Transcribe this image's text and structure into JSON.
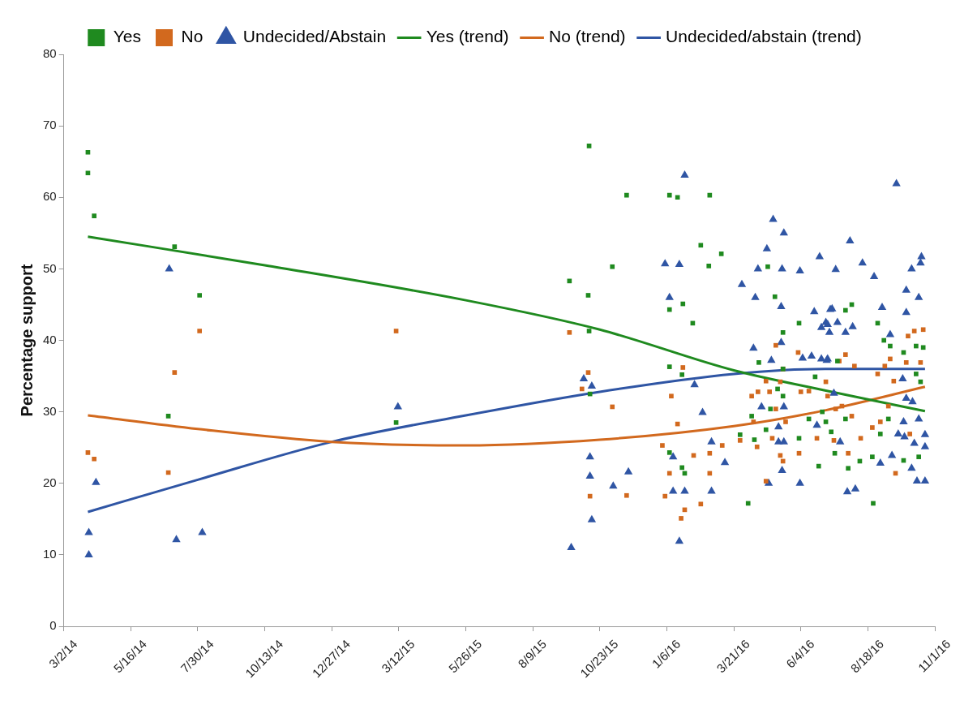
{
  "chart_data": {
    "type": "scatter",
    "ylabel": "Percentage support",
    "legend": "top",
    "grid": false,
    "xlim": [
      "2014-03-02",
      "2016-11-01"
    ],
    "xticks": [
      {
        "value": "2014-03-02",
        "label": "3/2/14"
      },
      {
        "value": "2014-05-16",
        "label": "5/16/14"
      },
      {
        "value": "2014-07-30",
        "label": "7/30/14"
      },
      {
        "value": "2014-10-13",
        "label": "10/13/14"
      },
      {
        "value": "2014-12-27",
        "label": "12/27/14"
      },
      {
        "value": "2015-03-12",
        "label": "3/12/15"
      },
      {
        "value": "2015-05-26",
        "label": "5/26/15"
      },
      {
        "value": "2015-08-09",
        "label": "8/9/15"
      },
      {
        "value": "2015-10-23",
        "label": "10/23/15"
      },
      {
        "value": "2016-01-06",
        "label": "1/6/16"
      },
      {
        "value": "2016-03-21",
        "label": "3/21/16"
      },
      {
        "value": "2016-06-04",
        "label": "6/4/16"
      },
      {
        "value": "2016-08-18",
        "label": "8/18/16"
      },
      {
        "value": "2016-11-01",
        "label": "11/1/16"
      }
    ],
    "ylim": [
      0,
      80
    ],
    "yticks": [
      0,
      10,
      20,
      30,
      40,
      50,
      60,
      70,
      80
    ],
    "series": [
      {
        "name": "Yes",
        "type": "scatter",
        "marker": "square",
        "color": "#1f8a1f",
        "x": [
          "2014-03-29",
          "2014-03-29",
          "2014-04-05",
          "2014-07-04",
          "2014-06-27",
          "2014-08-01",
          "2015-03-09",
          "2015-09-19",
          "2015-10-10",
          "2015-10-11",
          "2015-10-11",
          "2015-10-12",
          "2015-11-06",
          "2015-11-22",
          "2016-01-09",
          "2016-01-18",
          "2016-01-09",
          "2016-01-09",
          "2016-01-09",
          "2016-01-24",
          "2016-01-23",
          "2016-02-04",
          "2016-02-13",
          "2016-02-23",
          "2016-02-22",
          "2016-03-07",
          "2016-01-23",
          "2016-01-26",
          "2016-04-28",
          "2016-05-06",
          "2016-06-02",
          "2016-05-15",
          "2016-04-18",
          "2016-05-15",
          "2016-06-20",
          "2016-05-09",
          "2016-05-15",
          "2016-04-10",
          "2016-05-01",
          "2016-06-13",
          "2016-04-26",
          "2016-03-28",
          "2016-04-13",
          "2016-06-02",
          "2016-06-24",
          "2016-07-02",
          "2016-04-06",
          "2016-07-31",
          "2016-07-24",
          "2016-08-29",
          "2016-09-05",
          "2016-09-12",
          "2016-09-27",
          "2016-10-11",
          "2016-10-19",
          "2016-07-15",
          "2016-10-11",
          "2016-10-16",
          "2016-07-08",
          "2016-07-24",
          "2016-09-10",
          "2016-09-01",
          "2016-07-12",
          "2016-07-27",
          "2016-08-09",
          "2016-08-23",
          "2016-09-27",
          "2016-10-14",
          "2016-08-24",
          "2016-06-28"
        ],
        "values": [
          66.3,
          63.4,
          57.4,
          53.1,
          29.4,
          46.3,
          28.5,
          48.3,
          46.3,
          67.2,
          41.3,
          32.5,
          50.3,
          60.3,
          60.3,
          60.0,
          44.3,
          36.3,
          24.3,
          45.1,
          35.2,
          42.4,
          53.3,
          60.3,
          50.4,
          52.1,
          22.2,
          21.4,
          50.3,
          46.1,
          42.4,
          41.1,
          36.9,
          36.0,
          34.9,
          33.2,
          32.2,
          29.4,
          30.4,
          29.0,
          27.5,
          26.8,
          26.1,
          26.3,
          22.4,
          28.6,
          17.2,
          45.0,
          44.2,
          42.4,
          40.0,
          39.2,
          38.3,
          39.2,
          39.0,
          37.1,
          35.3,
          34.2,
          27.2,
          29.0,
          29.0,
          26.9,
          24.2,
          22.1,
          23.1,
          23.7,
          23.2,
          23.7,
          17.2,
          30.0
        ]
      },
      {
        "name": "No",
        "type": "scatter",
        "marker": "square",
        "color": "#d2691e",
        "x": [
          "2014-03-29",
          "2014-04-05",
          "2014-06-27",
          "2014-07-04",
          "2014-08-01",
          "2015-03-09",
          "2015-09-19",
          "2015-10-10",
          "2015-10-03",
          "2015-11-06",
          "2015-10-12",
          "2015-11-22",
          "2016-01-24",
          "2016-01-11",
          "2016-01-18",
          "2016-01-01",
          "2016-01-09",
          "2016-02-05",
          "2016-02-23",
          "2016-02-23",
          "2016-03-08",
          "2016-01-04",
          "2016-01-26",
          "2016-01-22",
          "2016-02-13",
          "2016-05-07",
          "2016-06-01",
          "2016-05-15",
          "2016-04-26",
          "2016-05-12",
          "2016-04-17",
          "2016-04-10",
          "2016-04-30",
          "2016-06-04",
          "2016-06-13",
          "2016-07-02",
          "2016-05-07",
          "2016-05-18",
          "2016-04-12",
          "2016-03-28",
          "2016-04-16",
          "2016-05-03",
          "2016-05-12",
          "2016-05-15",
          "2016-06-02",
          "2016-06-22",
          "2016-04-26",
          "2016-07-24",
          "2016-07-17",
          "2016-08-03",
          "2016-08-29",
          "2016-09-06",
          "2016-09-16",
          "2016-09-12",
          "2016-10-02",
          "2016-10-09",
          "2016-10-19",
          "2016-09-30",
          "2016-10-16",
          "2016-07-04",
          "2016-07-13",
          "2016-07-20",
          "2016-07-31",
          "2016-09-10",
          "2016-08-23",
          "2016-09-01",
          "2016-08-10",
          "2016-07-27",
          "2016-09-18",
          "2016-10-04",
          "2016-07-11"
        ],
        "values": [
          24.3,
          23.4,
          21.5,
          35.5,
          41.3,
          41.3,
          41.1,
          35.5,
          33.2,
          30.7,
          18.2,
          18.3,
          36.2,
          32.2,
          28.3,
          25.3,
          21.4,
          23.9,
          24.2,
          21.4,
          25.3,
          18.2,
          16.3,
          15.1,
          17.1,
          39.3,
          38.3,
          36.0,
          34.3,
          34.2,
          32.8,
          32.2,
          32.8,
          32.8,
          32.9,
          34.2,
          30.4,
          28.6,
          28.6,
          26.0,
          25.1,
          26.3,
          23.9,
          23.1,
          24.2,
          26.3,
          20.3,
          38.0,
          37.1,
          36.4,
          35.3,
          36.4,
          34.3,
          37.4,
          40.6,
          41.3,
          41.5,
          36.9,
          36.9,
          32.2,
          30.4,
          30.8,
          29.4,
          30.8,
          27.8,
          28.6,
          26.3,
          24.2,
          21.4,
          26.9,
          26.0
        ]
      },
      {
        "name": "Undecided/Abstain",
        "type": "scatter",
        "marker": "triangle",
        "color": "#2f55a4",
        "x": [
          "2014-03-30",
          "2014-03-30",
          "2014-04-07",
          "2014-06-28",
          "2014-07-06",
          "2014-08-04",
          "2015-03-11",
          "2015-09-21",
          "2015-10-05",
          "2015-10-14",
          "2015-10-12",
          "2015-10-12",
          "2015-10-14",
          "2015-11-07",
          "2015-11-24",
          "2016-01-04",
          "2016-01-20",
          "2016-01-26",
          "2016-01-09",
          "2016-01-13",
          "2016-01-13",
          "2016-01-26",
          "2016-01-20",
          "2016-02-06",
          "2016-02-15",
          "2016-02-25",
          "2016-02-25",
          "2016-03-11",
          "2016-05-04",
          "2016-05-16",
          "2016-04-27",
          "2016-04-17",
          "2016-05-14",
          "2016-06-03",
          "2016-06-25",
          "2016-03-30",
          "2016-04-14",
          "2016-05-13",
          "2016-06-19",
          "2016-07-07",
          "2016-07-02",
          "2016-06-27",
          "2016-07-06",
          "2016-05-13",
          "2016-04-12",
          "2016-05-02",
          "2016-06-06",
          "2016-06-16",
          "2016-06-27",
          "2016-07-04",
          "2016-04-21",
          "2016-05-16",
          "2016-05-10",
          "2016-05-10",
          "2016-05-16",
          "2016-06-22",
          "2016-05-14",
          "2016-04-29",
          "2016-06-03",
          "2016-07-29",
          "2016-08-12",
          "2016-07-13",
          "2016-08-25",
          "2016-10-06",
          "2016-10-17",
          "2016-10-16",
          "2016-09-30",
          "2016-10-14",
          "2016-09-03",
          "2016-09-30",
          "2016-07-09",
          "2016-07-15",
          "2016-07-04",
          "2016-08-01",
          "2016-07-24",
          "2016-09-12",
          "2016-07-03",
          "2016-09-26",
          "2016-07-11",
          "2016-09-30",
          "2016-10-07",
          "2016-10-14",
          "2016-09-27",
          "2016-09-21",
          "2016-10-21",
          "2016-09-28",
          "2016-10-09",
          "2016-10-21",
          "2016-07-18",
          "2016-09-01",
          "2016-09-14",
          "2016-10-06",
          "2016-10-12",
          "2016-10-21",
          "2016-09-19",
          "2016-07-26",
          "2016-08-04"
        ],
        "values": [
          13.1,
          10.0,
          20.1,
          50.0,
          12.1,
          13.1,
          30.7,
          11.0,
          34.6,
          33.6,
          23.7,
          21.0,
          14.9,
          19.6,
          21.6,
          50.7,
          50.6,
          63.1,
          46.0,
          23.7,
          18.9,
          18.9,
          11.9,
          33.8,
          29.9,
          25.8,
          18.9,
          22.9,
          56.9,
          55.0,
          52.8,
          50.0,
          50.0,
          49.7,
          51.7,
          47.8,
          46.0,
          44.7,
          44.0,
          44.3,
          42.5,
          41.8,
          41.1,
          39.7,
          38.9,
          37.2,
          37.5,
          37.8,
          37.4,
          37.4,
          30.7,
          30.7,
          27.9,
          25.8,
          25.8,
          28.1,
          21.8,
          20.0,
          20.0,
          53.9,
          50.8,
          49.9,
          48.9,
          50.0,
          51.7,
          50.8,
          47.0,
          46.0,
          44.6,
          43.9,
          44.4,
          42.5,
          42.2,
          41.9,
          41.1,
          40.8,
          37.2,
          34.6,
          32.6,
          31.9,
          31.4,
          29.0,
          28.6,
          26.9,
          26.8,
          26.5,
          25.6,
          25.1,
          25.8,
          22.8,
          23.9,
          22.1,
          20.3,
          20.3,
          61.9,
          18.8,
          19.2
        ]
      },
      {
        "name": "Yes (trend)",
        "type": "line",
        "marker": "none",
        "color": "#1f8a1f",
        "x": [
          "2014-03-29",
          "2014-10-13",
          "2015-05-26",
          "2015-10-23",
          "2016-03-21",
          "2016-07-01",
          "2016-10-21"
        ],
        "values": [
          54.5,
          50.5,
          45.6,
          41.5,
          35.8,
          33.0,
          30.1
        ]
      },
      {
        "name": "No (trend)",
        "type": "line",
        "marker": "none",
        "color": "#d2691e",
        "x": [
          "2014-03-29",
          "2014-07-30",
          "2014-12-27",
          "2015-05-26",
          "2015-10-23",
          "2016-03-21",
          "2016-07-01",
          "2016-10-21"
        ],
        "values": [
          29.5,
          27.6,
          25.8,
          25.3,
          26.1,
          28.0,
          30.2,
          33.5
        ]
      },
      {
        "name": "Undecided/abstain (trend)",
        "type": "line",
        "marker": "none",
        "color": "#2f55a4",
        "x": [
          "2014-03-29",
          "2014-07-30",
          "2014-12-27",
          "2015-05-26",
          "2015-10-23",
          "2016-03-21",
          "2016-07-01",
          "2016-10-21"
        ],
        "values": [
          16.0,
          20.5,
          25.8,
          29.5,
          32.8,
          35.3,
          36.0,
          36.0
        ]
      }
    ]
  }
}
